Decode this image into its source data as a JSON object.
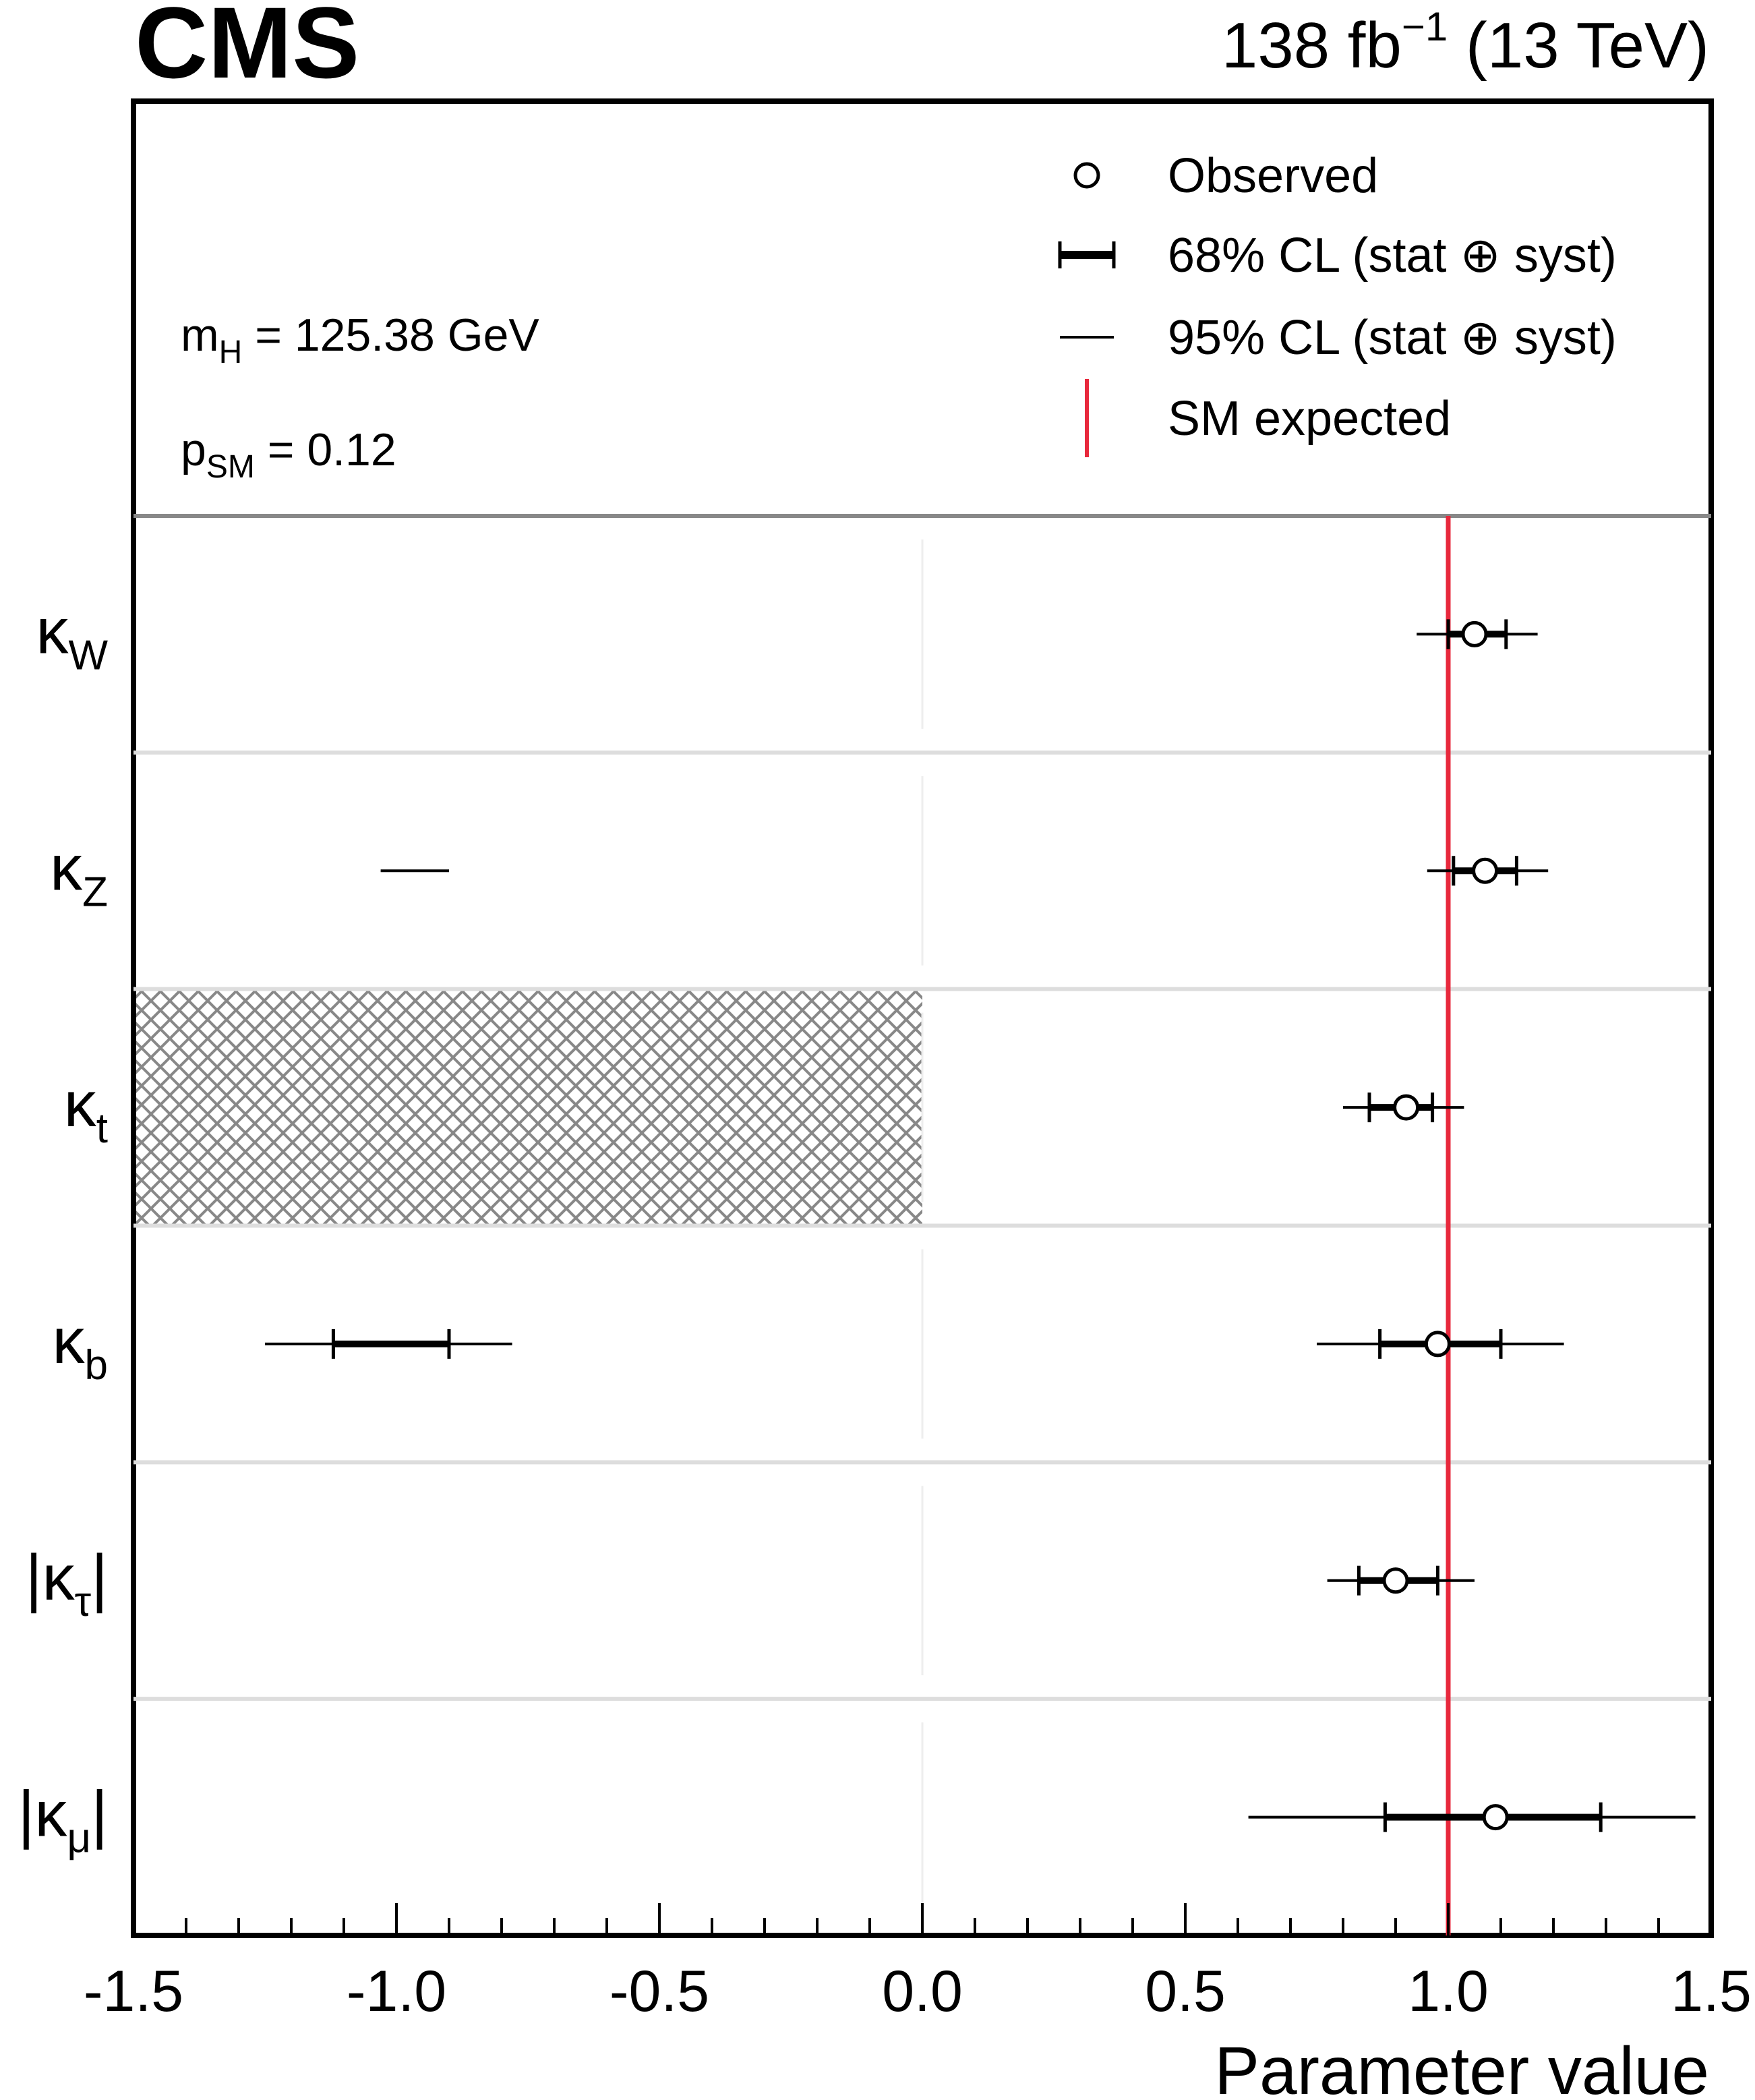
{
  "header": {
    "experiment": "CMS",
    "lumi_value": "138 fb",
    "lumi_exponent": "−1",
    "energy": "(13 TeV)"
  },
  "info": {
    "mass_symbol": "m",
    "mass_subscript": "H",
    "mass_value": " = 125.38 GeV",
    "psm_symbol": "p",
    "psm_subscript": "SM",
    "psm_value": " = 0.12"
  },
  "legend": {
    "observed": "Observed",
    "cl68": "68% CL (stat ⊕ syst)",
    "cl95": "95% CL (stat ⊕ syst)",
    "sm": "SM expected"
  },
  "colors": {
    "sm_line": "#e8283c",
    "hatch": "#888888",
    "separator": "#dddddd",
    "frame": "#000000"
  },
  "chart_data": {
    "type": "scatter",
    "xlabel": "Parameter value",
    "xlim": [
      -1.5,
      1.5
    ],
    "x_ticks": [
      "-1.5",
      "-1.0",
      "-0.5",
      "0.0",
      "0.5",
      "1.0",
      "1.5"
    ],
    "sm_value": 1.0,
    "parameters": [
      {
        "symbol": "κ",
        "subscript": "W",
        "abs": false,
        "value": 1.05,
        "cl68": [
          1.0,
          1.11
        ],
        "cl95": [
          0.94,
          1.17
        ],
        "cl95_extra": []
      },
      {
        "symbol": "κ",
        "subscript": "Z",
        "abs": false,
        "value": 1.07,
        "cl68": [
          1.01,
          1.13
        ],
        "cl95": [
          0.96,
          1.19
        ],
        "cl95_extra": [
          [
            -1.03,
            -0.9
          ]
        ]
      },
      {
        "symbol": "κ",
        "subscript": "t",
        "abs": false,
        "value": 0.92,
        "cl68": [
          0.85,
          0.97
        ],
        "cl95": [
          0.8,
          1.03
        ],
        "cl95_extra": [],
        "excluded_region": [
          -1.5,
          0.0
        ]
      },
      {
        "symbol": "κ",
        "subscript": "b",
        "abs": false,
        "value": 0.98,
        "cl68": [
          0.87,
          1.1
        ],
        "cl95": [
          0.75,
          1.22
        ],
        "cl95_extra": [
          [
            -1.25,
            -0.78
          ]
        ],
        "cl68_extra": [
          [
            -1.12,
            -0.9
          ]
        ]
      },
      {
        "symbol": "κ",
        "subscript": "τ",
        "abs": true,
        "value": 0.9,
        "cl68": [
          0.83,
          0.98
        ],
        "cl95": [
          0.77,
          1.05
        ],
        "cl95_extra": []
      },
      {
        "symbol": "κ",
        "subscript": "μ",
        "abs": true,
        "value": 1.09,
        "cl68": [
          0.88,
          1.29
        ],
        "cl95": [
          0.62,
          1.47
        ],
        "cl95_extra": []
      }
    ]
  }
}
